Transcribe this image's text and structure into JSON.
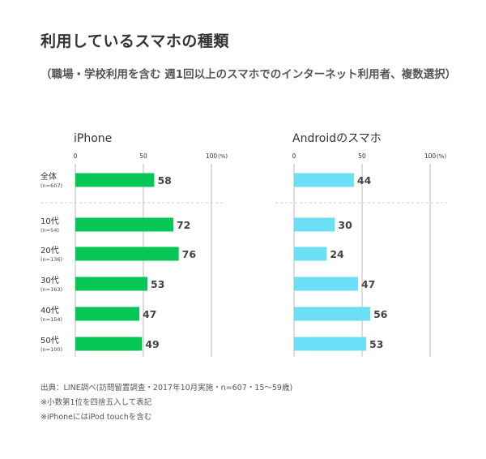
{
  "title": "利用しているスマホの種類",
  "subtitle": "（職場・学校利用を含む 週1回以上のスマホでのインターネット利用者、複数選択）",
  "chart_data": {
    "type": "bar",
    "orientation": "horizontal",
    "categories": [
      {
        "label": "全体",
        "n": "(n=607)"
      },
      {
        "label": "10代",
        "n": "(n=54)"
      },
      {
        "label": "20代",
        "n": "(n=136)"
      },
      {
        "label": "30代",
        "n": "(n=163)"
      },
      {
        "label": "40代",
        "n": "(n=154)"
      },
      {
        "label": "50代",
        "n": "(n=100)"
      }
    ],
    "xlim": [
      0,
      100
    ],
    "ticks": [
      "0",
      "50",
      "100"
    ],
    "unit": "(%)",
    "grid": true,
    "panels": [
      {
        "name": "iPhone",
        "color": "#06c755",
        "values": [
          58,
          72,
          76,
          53,
          47,
          49
        ]
      },
      {
        "name": "Androidのスマホ",
        "color": "#6bdff5",
        "values": [
          44,
          30,
          24,
          47,
          56,
          53
        ]
      }
    ]
  },
  "notes": [
    "出典：LINE調べ(訪問留置調査・2017年10月実施・n=607・15〜59歳)",
    "※小数第1位を四捨五入して表記",
    "※iPhoneにはiPod touchを含む"
  ]
}
